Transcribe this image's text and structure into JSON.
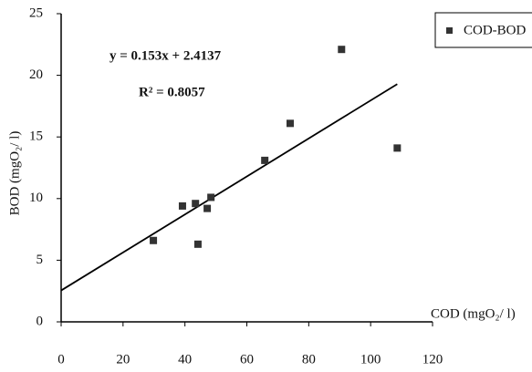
{
  "chart_data": {
    "type": "scatter",
    "x_label": "COD (mgO₂/ l)",
    "y_label": "BOD (mgO₂/ l)",
    "equation": "y = 0.153x + 2.4137",
    "r_squared": "R² = 0.8057",
    "series": [
      {
        "name": "COD-BOD",
        "color": "#333333",
        "x": [
          29.8,
          39.2,
          43.4,
          44.2,
          47.2,
          48.4,
          65.8,
          74.0,
          90.6,
          108.6
        ],
        "values": [
          6.6,
          9.4,
          9.6,
          6.3,
          9.2,
          10.1,
          13.1,
          16.1,
          22.1,
          14.1
        ]
      }
    ],
    "xlim": [
      0,
      120
    ],
    "xticks": [
      0,
      20,
      40,
      60,
      80,
      100,
      120
    ],
    "ylim": [
      0,
      25
    ],
    "yticks": [
      0,
      5,
      10,
      15,
      20,
      25
    ],
    "trendline": true,
    "legend": "top-right"
  }
}
